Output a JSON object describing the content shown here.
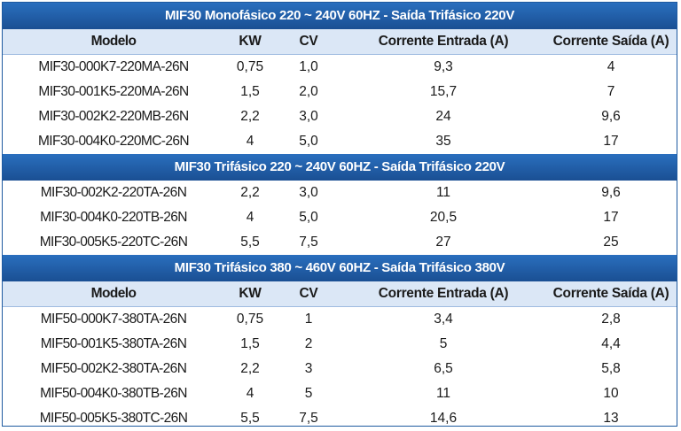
{
  "columns": [
    "Modelo",
    "KW",
    "CV",
    "Corrente Entrada (A)",
    "Corrente Saída (A)"
  ],
  "sections": [
    {
      "title": "MIF30 Monofásico 220 ~ 240V 60HZ - Saída Trifásico 220V",
      "show_header": true,
      "rows": [
        [
          "MIF30-000K7-220MA-26N",
          "0,75",
          "1,0",
          "9,3",
          "4"
        ],
        [
          "MIF30-001K5-220MA-26N",
          "1,5",
          "2,0",
          "15,7",
          "7"
        ],
        [
          "MIF30-002K2-220MB-26N",
          "2,2",
          "3,0",
          "24",
          "9,6"
        ],
        [
          "MIF30-004K0-220MC-26N",
          "4",
          "5,0",
          "35",
          "17"
        ]
      ]
    },
    {
      "title": "MIF30 Trifásico 220 ~ 240V 60HZ - Saída Trifásico 220V",
      "show_header": false,
      "rows": [
        [
          "MIF30-002K2-220TA-26N",
          "2,2",
          "3,0",
          "11",
          "9,6"
        ],
        [
          "MIF30-004K0-220TB-26N",
          "4",
          "5,0",
          "20,5",
          "17"
        ],
        [
          "MIF30-005K5-220TC-26N",
          "5,5",
          "7,5",
          "27",
          "25"
        ]
      ]
    },
    {
      "title": "MIF30 Trifásico 380 ~ 460V 60HZ - Saída Trifásico 380V",
      "show_header": true,
      "rows": [
        [
          "MIF50-000K7-380TA-26N",
          "0,75",
          "1",
          "3,4",
          "2,8"
        ],
        [
          "MIF50-001K5-380TA-26N",
          "1,5",
          "2",
          "5",
          "4,4"
        ],
        [
          "MIF50-002K2-380TA-26N",
          "2,2",
          "3",
          "6,5",
          "5,8"
        ],
        [
          "MIF50-004K0-380TB-26N",
          "4",
          "5",
          "11",
          "10"
        ],
        [
          "MIF50-005K5-380TC-26N",
          "5,5",
          "7,5",
          "14,6",
          "13"
        ]
      ]
    }
  ]
}
